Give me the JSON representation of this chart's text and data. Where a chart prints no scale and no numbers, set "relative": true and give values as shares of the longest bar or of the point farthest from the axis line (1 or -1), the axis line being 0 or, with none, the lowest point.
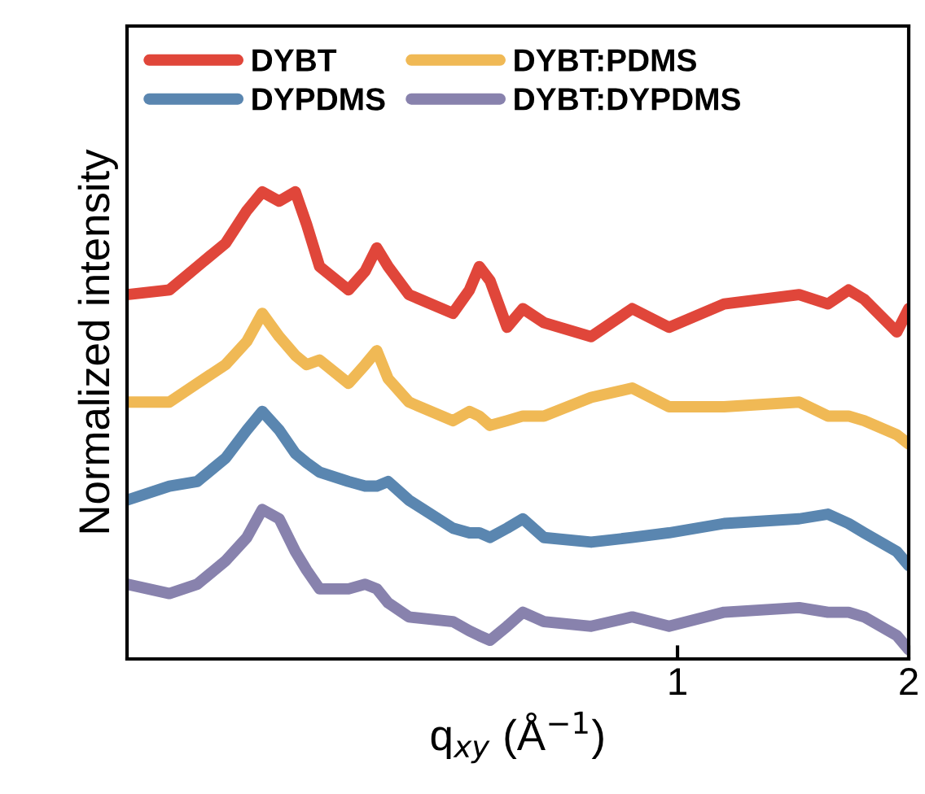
{
  "chart_data": {
    "type": "line",
    "relative": true,
    "log": "x",
    "xlabel": "q$_{xy}$ (Å$^{−1}$)",
    "ylabel": "Normalized intensity",
    "xlim": [
      0.192,
      2.0
    ],
    "xticks": [
      1,
      2
    ],
    "tick_labels": "x",
    "grid": false,
    "legend": "top left",
    "line_style": "solid",
    "marker": "none",
    "x": [
      0.192,
      0.218,
      0.237,
      0.258,
      0.275,
      0.288,
      0.303,
      0.318,
      0.329,
      0.342,
      0.373,
      0.392,
      0.406,
      0.42,
      0.447,
      0.51,
      0.536,
      0.552,
      0.57,
      0.6,
      0.629,
      0.67,
      0.772,
      0.873,
      0.975,
      1.15,
      1.44,
      1.57,
      1.67,
      1.75,
      1.93,
      2.0
    ],
    "series": [
      {
        "name": "DYBT",
        "color": "#e0463a",
        "values": [
          0.78,
          0.79,
          0.84,
          0.89,
          0.96,
          1.0,
          0.98,
          1.0,
          0.93,
          0.84,
          0.79,
          0.83,
          0.88,
          0.84,
          0.78,
          0.74,
          0.79,
          0.84,
          0.81,
          0.71,
          0.75,
          0.72,
          0.69,
          0.75,
          0.71,
          0.76,
          0.78,
          0.76,
          0.79,
          0.77,
          0.7,
          0.75
        ]
      },
      {
        "name": "DYPDMS",
        "color": "#5a86b0",
        "values": [
          0.34,
          0.37,
          0.38,
          0.43,
          0.49,
          0.53,
          0.49,
          0.44,
          0.42,
          0.4,
          0.38,
          0.37,
          0.37,
          0.38,
          0.34,
          0.28,
          0.27,
          0.27,
          0.26,
          0.28,
          0.3,
          0.26,
          0.25,
          0.26,
          0.27,
          0.29,
          0.3,
          0.31,
          0.29,
          0.27,
          0.23,
          0.2
        ]
      },
      {
        "name": "DYBT:PDMS",
        "color": "#f0b955",
        "values": [
          0.55,
          0.55,
          0.59,
          0.63,
          0.68,
          0.74,
          0.69,
          0.65,
          0.63,
          0.64,
          0.59,
          0.63,
          0.66,
          0.6,
          0.55,
          0.51,
          0.53,
          0.52,
          0.5,
          0.51,
          0.52,
          0.52,
          0.56,
          0.58,
          0.54,
          0.54,
          0.55,
          0.52,
          0.52,
          0.51,
          0.48,
          0.46
        ]
      },
      {
        "name": "DYBT:DYPDMS",
        "color": "#8882ad",
        "values": [
          0.16,
          0.14,
          0.16,
          0.21,
          0.26,
          0.32,
          0.3,
          0.23,
          0.19,
          0.15,
          0.15,
          0.16,
          0.15,
          0.12,
          0.09,
          0.08,
          0.06,
          0.05,
          0.04,
          0.07,
          0.1,
          0.08,
          0.07,
          0.09,
          0.07,
          0.1,
          0.11,
          0.1,
          0.1,
          0.09,
          0.05,
          0.02
        ]
      }
    ]
  }
}
